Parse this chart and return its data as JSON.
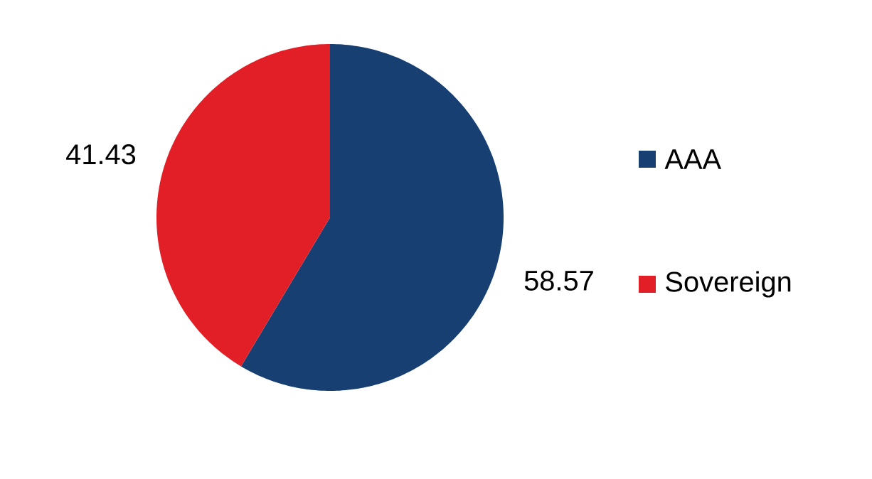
{
  "chart_data": {
    "type": "pie",
    "categories": [
      "AAA",
      "Sovereign"
    ],
    "values": [
      58.57,
      41.43
    ],
    "value_labels": [
      "58.57",
      "41.43"
    ],
    "colors": [
      "#173f72",
      "#e21f26"
    ],
    "legend": "right"
  }
}
